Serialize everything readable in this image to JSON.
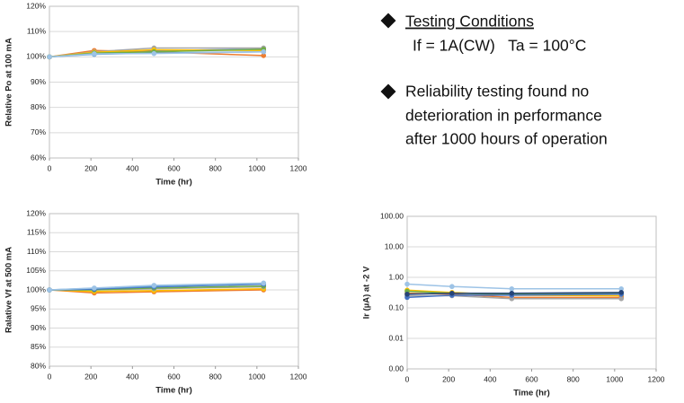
{
  "chart_data": [
    {
      "type": "line",
      "ylabel": "Relative Po at 100 mA",
      "xlabel": "Time (hr)",
      "x": [
        0,
        216,
        504,
        1032
      ],
      "xlim": [
        0,
        1200
      ],
      "xticks": [
        0,
        200,
        400,
        600,
        800,
        1000,
        1200
      ],
      "ylim": [
        60,
        120
      ],
      "yticks": [
        {
          "value": 60,
          "label": "60%"
        },
        {
          "value": 70,
          "label": "70%"
        },
        {
          "value": 80,
          "label": "80%"
        },
        {
          "value": 90,
          "label": "90%"
        },
        {
          "value": 100,
          "label": "100%"
        },
        {
          "value": 110,
          "label": "110%"
        },
        {
          "value": 120,
          "label": "120%"
        }
      ],
      "grid": true,
      "series": [
        {
          "color": "#4472c4",
          "values": [
            100,
            101.5,
            102.5,
            103
          ]
        },
        {
          "color": "#ed7d31",
          "values": [
            100,
            102.5,
            102,
            100.5
          ]
        },
        {
          "color": "#a5a5a5",
          "values": [
            100,
            102,
            103.5,
            103.5
          ]
        },
        {
          "color": "#ffc000",
          "values": [
            100,
            101.8,
            102.8,
            102.5
          ]
        },
        {
          "color": "#5b9bd5",
          "values": [
            100,
            101,
            101.5,
            102
          ]
        },
        {
          "color": "#70ad47",
          "values": [
            100,
            101.5,
            102,
            103
          ]
        },
        {
          "color": "#9dc3e6",
          "values": [
            100,
            101.2,
            101.3,
            102
          ]
        }
      ]
    },
    {
      "type": "line",
      "ylabel": "Ralative Vf at 500 mA",
      "xlabel": "Time (hr)",
      "x": [
        0,
        216,
        504,
        1032
      ],
      "xlim": [
        0,
        1200
      ],
      "xticks": [
        0,
        200,
        400,
        600,
        800,
        1000,
        1200
      ],
      "ylim": [
        80,
        120
      ],
      "yticks": [
        {
          "value": 80,
          "label": "80%"
        },
        {
          "value": 85,
          "label": "85%"
        },
        {
          "value": 90,
          "label": "90%"
        },
        {
          "value": 95,
          "label": "95%"
        },
        {
          "value": 100,
          "label": "100%"
        },
        {
          "value": 105,
          "label": "105%"
        },
        {
          "value": 110,
          "label": "110%"
        },
        {
          "value": 115,
          "label": "115%"
        },
        {
          "value": 120,
          "label": "120%"
        }
      ],
      "grid": true,
      "series": [
        {
          "color": "#ed7d31",
          "values": [
            100,
            99.2,
            99.5,
            100
          ]
        },
        {
          "color": "#ffc000",
          "values": [
            100,
            99.6,
            99.8,
            100.3
          ]
        },
        {
          "color": "#a5a5a5",
          "values": [
            100,
            100,
            100.3,
            100.8
          ]
        },
        {
          "color": "#70ad47",
          "values": [
            100,
            100,
            100.5,
            101
          ]
        },
        {
          "color": "#4472c4",
          "values": [
            100,
            100.2,
            100.8,
            101.5
          ]
        },
        {
          "color": "#5b9bd5",
          "values": [
            100,
            100.4,
            101,
            101.7
          ]
        },
        {
          "color": "#9dc3e6",
          "values": [
            100,
            100.5,
            101.2,
            101.8
          ]
        }
      ]
    },
    {
      "type": "line",
      "ylabel": "Ir (µA) at -2 V",
      "xlabel": "Time (hr)",
      "x": [
        0,
        216,
        504,
        1032
      ],
      "xlim": [
        0,
        1200
      ],
      "xticks": [
        0,
        200,
        400,
        600,
        800,
        1000,
        1200
      ],
      "ylim": [
        0.001,
        100
      ],
      "log": true,
      "yticks": [
        {
          "value": 0.001,
          "label": "0.00"
        },
        {
          "value": 0.01,
          "label": "0.01"
        },
        {
          "value": 0.1,
          "label": "0.10"
        },
        {
          "value": 1,
          "label": "1.00"
        },
        {
          "value": 10,
          "label": "10.00"
        },
        {
          "value": 100,
          "label": "100.00"
        }
      ],
      "grid": true,
      "series": [
        {
          "color": "#9dc3e6",
          "values": [
            0.6,
            0.5,
            0.42,
            0.42
          ]
        },
        {
          "color": "#ffc000",
          "values": [
            0.38,
            0.32,
            0.26,
            0.25
          ]
        },
        {
          "color": "#ed7d31",
          "values": [
            0.3,
            0.28,
            0.22,
            0.22
          ]
        },
        {
          "color": "#a5a5a5",
          "values": [
            0.25,
            0.25,
            0.2,
            0.2
          ]
        },
        {
          "color": "#70ad47",
          "values": [
            0.35,
            0.3,
            0.28,
            0.3
          ]
        },
        {
          "color": "#4472c4",
          "values": [
            0.22,
            0.26,
            0.26,
            0.28
          ]
        },
        {
          "color": "#264478",
          "values": [
            0.28,
            0.3,
            0.3,
            0.32
          ]
        }
      ]
    }
  ],
  "notes": {
    "heading": "Testing Conditions",
    "conditions": "If = 1A(CW)   Ta = 100°C",
    "lines": [
      "Reliability testing found no",
      "deterioration in performance",
      "after 1000 hours of operation"
    ]
  }
}
